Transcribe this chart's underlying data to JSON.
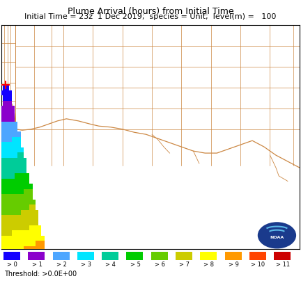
{
  "title1": "Plume Arrival (hours) from Initial Time",
  "title2": "Initial Time = 23z  1 Dec 2019;  species = Unit;  level(m) =   100",
  "threshold_label": "Threshold: >0.0E+00",
  "legend_labels": [
    "> 0",
    "> 1",
    "> 2",
    "> 3",
    "> 4",
    "> 5",
    "> 6",
    "> 7",
    "> 8",
    "> 9",
    "> 10",
    "> 11"
  ],
  "legend_colors": [
    "#1400ff",
    "#8b00cc",
    "#4da6ff",
    "#00e5ff",
    "#00cc99",
    "#00cc00",
    "#66cc00",
    "#cccc00",
    "#ffff00",
    "#ff9900",
    "#ff4400",
    "#cc0000"
  ],
  "bg_color": "#ffffff",
  "county_color": "#cc8844",
  "release_point": [
    -93.98,
    29.98
  ],
  "lon_min": -94.05,
  "lon_max": -89.0,
  "lat_min": 28.4,
  "lat_max": 30.55,
  "cell_size": 0.05,
  "figsize": [
    4.32,
    4.04
  ],
  "dpi": 100
}
